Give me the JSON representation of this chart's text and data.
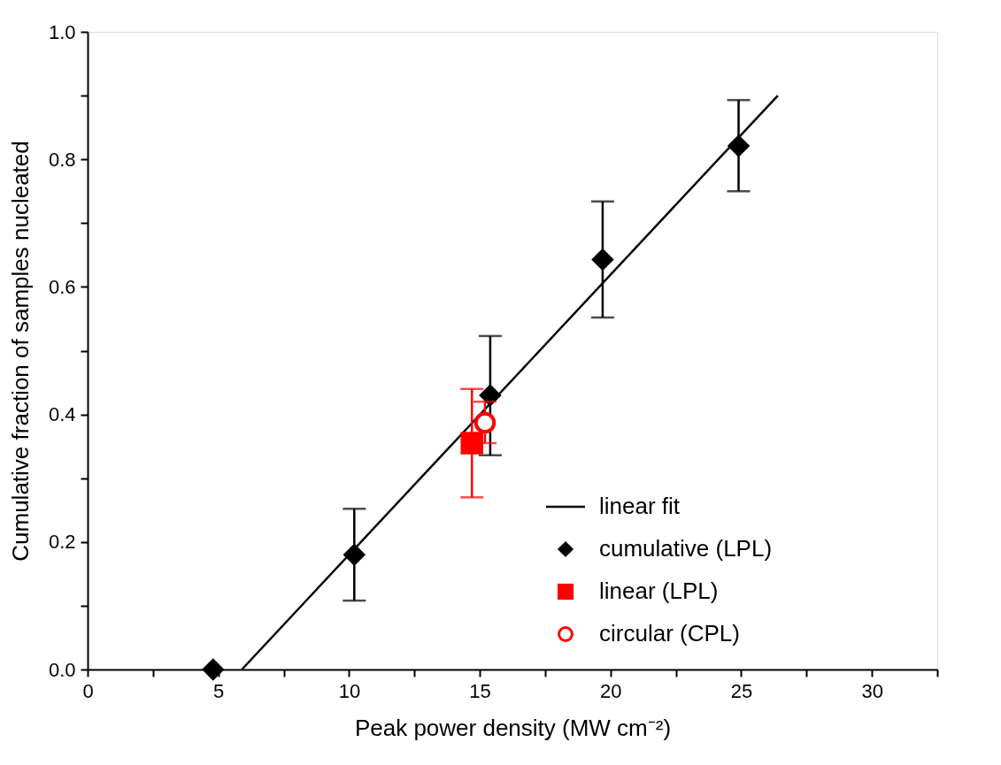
{
  "chart_data": {
    "type": "scatter",
    "xlabel": "Peak power density (MW cm⁻²)",
    "ylabel": "Cumulative fraction of samples nucleated",
    "xlim": [
      0,
      32.5
    ],
    "xticks": [
      0,
      {
        "value": 2.5,
        "label": null
      },
      5,
      {
        "value": 7.5,
        "label": null
      },
      10,
      {
        "value": 12.5,
        "label": null
      },
      15,
      {
        "value": 17.5,
        "label": null
      },
      20,
      {
        "value": 22.5,
        "label": null
      },
      25,
      {
        "value": 27.5,
        "label": null
      },
      30,
      {
        "value": 32.5,
        "label": null
      }
    ],
    "ylim": [
      0,
      1.0
    ],
    "yticks": [
      {
        "value": 0,
        "label": "0.0"
      },
      {
        "value": 0.1,
        "label": null
      },
      0.2,
      {
        "value": 0.3,
        "label": null
      },
      0.4,
      {
        "value": 0.5,
        "label": null
      },
      0.6,
      {
        "value": 0.7,
        "label": null
      },
      0.8,
      {
        "value": 0.9,
        "label": null
      },
      {
        "value": 1.0,
        "label": "1.0"
      }
    ],
    "grid": false,
    "legend": "bottom right",
    "series": [
      {
        "name": "linear fit",
        "type": "line",
        "color": "#000000",
        "marker": "none",
        "x": [
          5.9,
          26.4
        ],
        "values": [
          0.0,
          0.9
        ]
      },
      {
        "name": "cumulative (LPL)",
        "color": "#000000",
        "marker": "diamond",
        "x": [
          4.8,
          10.2,
          15.4,
          19.7,
          24.9
        ],
        "values": [
          0.0,
          0.18,
          0.43,
          0.643,
          0.821
        ],
        "errors": [
          null,
          [
            0.108,
            0.252
          ],
          [
            0.336,
            0.523
          ],
          [
            0.552,
            0.734
          ],
          [
            0.75,
            0.893
          ]
        ]
      },
      {
        "name": "linear (LPL)",
        "color": "#ff0000",
        "marker": "square",
        "x": [
          14.7
        ],
        "values": [
          0.355
        ],
        "errors": [
          [
            0.27,
            0.44
          ]
        ]
      },
      {
        "name": "circular (CPL)",
        "color": "#ff0000",
        "marker": "circle",
        "x": [
          15.2
        ],
        "values": [
          0.387
        ],
        "errors": [
          [
            0.355,
            0.42
          ]
        ]
      }
    ]
  }
}
